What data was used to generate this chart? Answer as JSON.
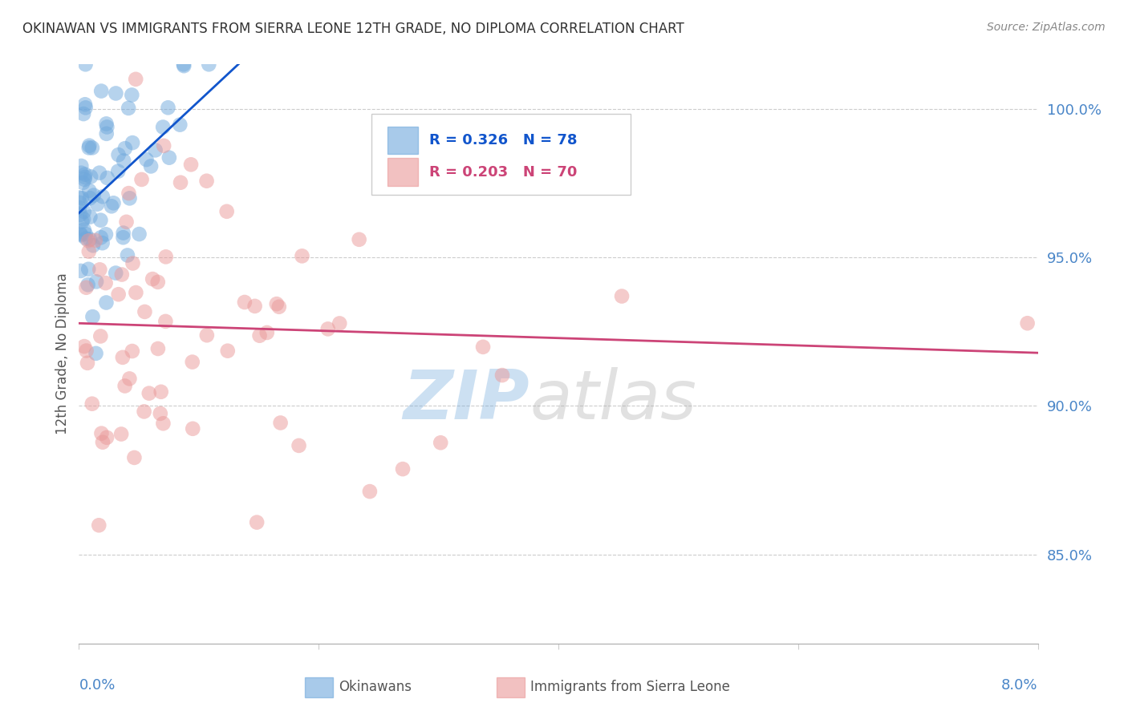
{
  "title": "OKINAWAN VS IMMIGRANTS FROM SIERRA LEONE 12TH GRADE, NO DIPLOMA CORRELATION CHART",
  "source": "Source: ZipAtlas.com",
  "ylabel": "12th Grade, No Diploma",
  "x_min": 0.0,
  "x_max": 8.0,
  "y_min": 82.0,
  "y_max": 101.5,
  "y_ticks": [
    85.0,
    90.0,
    95.0,
    100.0
  ],
  "blue_R": 0.326,
  "blue_N": 78,
  "pink_R": 0.203,
  "pink_N": 70,
  "blue_color": "#6fa8dc",
  "pink_color": "#ea9999",
  "blue_line_color": "#1155cc",
  "pink_line_color": "#cc4477",
  "axis_label_color": "#4a86c8",
  "watermark_zip_color": "#6fa8dc",
  "watermark_atlas_color": "#aaaaaa",
  "background_color": "#ffffff"
}
